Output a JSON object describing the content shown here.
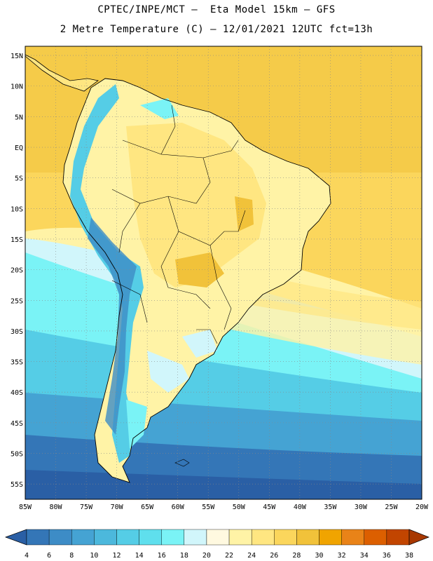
{
  "header": {
    "title_line1": "CPTEC/INPE/MCT –  Eta Model 15km – GFS",
    "title_line2": "2 Metre Temperature (C) – 12/01/2021 12UTC fct=13h"
  },
  "map": {
    "region": "South America",
    "lon_labels": [
      "85W",
      "80W",
      "75W",
      "70W",
      "65W",
      "60W",
      "55W",
      "50W",
      "45W",
      "40W",
      "35W",
      "30W",
      "25W",
      "20W"
    ],
    "lat_labels": [
      "15N",
      "10N",
      "5N",
      "EQ",
      "5S",
      "10S",
      "15S",
      "20S",
      "25S",
      "30S",
      "35S",
      "40S",
      "45S",
      "50S",
      "55S"
    ],
    "lon_range": [
      -85,
      -20
    ],
    "lat_range": [
      16.5,
      -57.5
    ],
    "grid": true
  },
  "colorbar": {
    "ticks": [
      "4",
      "6",
      "8",
      "10",
      "12",
      "14",
      "16",
      "18",
      "20",
      "22",
      "24",
      "26",
      "28",
      "30",
      "32",
      "34",
      "36",
      "38"
    ],
    "colors": [
      "#2a5fa5",
      "#3476b7",
      "#3d8cc6",
      "#45a3d3",
      "#4cb8dc",
      "#55cde6",
      "#5fdfed",
      "#7af3f6",
      "#d1f6fb",
      "#fff9e0",
      "#fff3a6",
      "#ffe681",
      "#fbd65c",
      "#f1c23a",
      "#f0a400",
      "#e98318",
      "#dc5f00",
      "#c24500",
      "#a83800"
    ]
  }
}
